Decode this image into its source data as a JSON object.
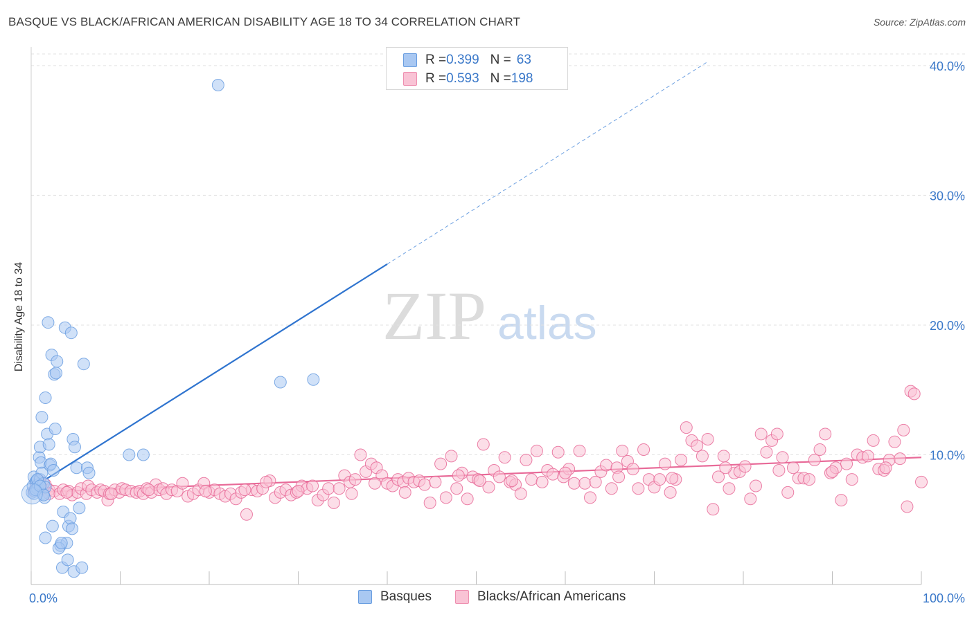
{
  "title": "BASQUE VS BLACK/AFRICAN AMERICAN DISABILITY AGE 18 TO 34 CORRELATION CHART",
  "source": "Source: ZipAtlas.com",
  "watermark": {
    "zip": "ZIP",
    "atlas": "atlas"
  },
  "legend_top": [
    {
      "r_label": "R = ",
      "r_value": "0.399",
      "n_label": "N = ",
      "n_value": "63",
      "color": "#a9c8f2",
      "border": "#6a9ee0"
    },
    {
      "r_label": "R = ",
      "r_value": "0.593",
      "n_label": "N = ",
      "n_value": "198",
      "color": "#f9c3d5",
      "border": "#ee8fb0"
    }
  ],
  "legend_bottom": [
    {
      "label": "Basques",
      "color": "#a9c8f2",
      "border": "#6a9ee0"
    },
    {
      "label": "Blacks/African Americans",
      "color": "#f9c3d5",
      "border": "#ee8fb0"
    }
  ],
  "chart_data": {
    "type": "scatter",
    "title": "BASQUE VS BLACK/AFRICAN AMERICAN DISABILITY AGE 18 TO 34 CORRELATION CHART",
    "xlabel": "",
    "ylabel": "Disability Age 18 to 34",
    "xlim": [
      0,
      100
    ],
    "ylim": [
      0,
      40
    ],
    "x_tick_labels": [
      "0.0%",
      "100.0%"
    ],
    "y_ticks": [
      10,
      20,
      30,
      40
    ],
    "y_tick_labels": [
      "10.0%",
      "20.0%",
      "30.0%",
      "40.0%"
    ],
    "grid": "horizontal dashed",
    "series": [
      {
        "name": "Basques",
        "color": "#6a9ee0",
        "fill": "#a9c8f2",
        "R": 0.399,
        "N": 63,
        "trend": {
          "x0": 0.0,
          "y0": 7.4,
          "x1": 40.0,
          "y1": 24.7,
          "dash_to_x": 76.0,
          "dash_to_y": 40.3
        },
        "points": [
          [
            0.1,
            7.1
          ],
          [
            0.2,
            7.6
          ],
          [
            0.3,
            8.3
          ],
          [
            0.4,
            7.2
          ],
          [
            0.5,
            7.9
          ],
          [
            0.6,
            8.0
          ],
          [
            0.7,
            7.4
          ],
          [
            0.8,
            7.7
          ],
          [
            0.9,
            9.8
          ],
          [
            1.0,
            8.1
          ],
          [
            1.1,
            9.4
          ],
          [
            1.2,
            8.6
          ],
          [
            1.3,
            7.0
          ],
          [
            1.4,
            7.8
          ],
          [
            1.5,
            6.7
          ],
          [
            1.6,
            7.5
          ],
          [
            1.0,
            10.6
          ],
          [
            1.2,
            12.9
          ],
          [
            1.6,
            14.4
          ],
          [
            1.8,
            11.6
          ],
          [
            1.9,
            20.2
          ],
          [
            2.0,
            10.8
          ],
          [
            2.1,
            9.2
          ],
          [
            2.2,
            9.3
          ],
          [
            2.3,
            17.7
          ],
          [
            2.5,
            8.8
          ],
          [
            2.6,
            16.2
          ],
          [
            2.8,
            16.3
          ],
          [
            2.7,
            12.0
          ],
          [
            2.9,
            17.2
          ],
          [
            3.3,
            3.0
          ],
          [
            3.5,
            1.3
          ],
          [
            3.6,
            5.6
          ],
          [
            3.8,
            19.8
          ],
          [
            4.0,
            3.2
          ],
          [
            4.1,
            1.9
          ],
          [
            4.2,
            4.5
          ],
          [
            4.4,
            5.1
          ],
          [
            4.5,
            19.4
          ],
          [
            4.6,
            4.3
          ],
          [
            4.7,
            11.2
          ],
          [
            4.8,
            1.0
          ],
          [
            4.9,
            10.6
          ],
          [
            5.1,
            9.0
          ],
          [
            5.4,
            5.9
          ],
          [
            5.7,
            1.3
          ],
          [
            5.9,
            17.0
          ],
          [
            6.3,
            9.0
          ],
          [
            6.5,
            8.6
          ],
          [
            1.6,
            3.6
          ],
          [
            2.4,
            4.5
          ],
          [
            3.1,
            2.8
          ],
          [
            3.4,
            3.2
          ],
          [
            21.0,
            38.5
          ],
          [
            28.0,
            15.6
          ],
          [
            31.7,
            15.8
          ],
          [
            11.0,
            10.0
          ],
          [
            12.6,
            10.0
          ],
          [
            0.3,
            7.0
          ],
          [
            0.5,
            7.3
          ],
          [
            0.7,
            8.1
          ],
          [
            1.0,
            7.6
          ],
          [
            1.4,
            6.9
          ]
        ]
      },
      {
        "name": "Blacks/African Americans",
        "color": "#e86a98",
        "fill": "#f9c3d5",
        "R": 0.593,
        "N": 198,
        "trend": {
          "x0": 0.0,
          "y0": 7.1,
          "x1": 100.0,
          "y1": 9.8
        },
        "points": [
          [
            0.3,
            7.2
          ],
          [
            0.6,
            7.6
          ],
          [
            0.9,
            8.0
          ],
          [
            1.2,
            7.4
          ],
          [
            1.6,
            7.7
          ],
          [
            2.0,
            7.3
          ],
          [
            2.6,
            7.2
          ],
          [
            3.2,
            7.0
          ],
          [
            3.6,
            7.3
          ],
          [
            4.2,
            7.2
          ],
          [
            4.6,
            6.9
          ],
          [
            5.2,
            7.1
          ],
          [
            5.6,
            7.4
          ],
          [
            6.2,
            7.0
          ],
          [
            6.4,
            7.6
          ],
          [
            6.8,
            7.3
          ],
          [
            7.4,
            7.1
          ],
          [
            7.8,
            7.3
          ],
          [
            8.2,
            7.2
          ],
          [
            8.6,
            6.5
          ],
          [
            8.8,
            7.0
          ],
          [
            9.4,
            7.3
          ],
          [
            9.9,
            7.1
          ],
          [
            10.2,
            7.4
          ],
          [
            10.6,
            7.3
          ],
          [
            11.2,
            7.2
          ],
          [
            11.8,
            7.1
          ],
          [
            12.2,
            7.2
          ],
          [
            12.6,
            7.0
          ],
          [
            13.0,
            7.4
          ],
          [
            13.5,
            7.1
          ],
          [
            14.0,
            7.7
          ],
          [
            14.4,
            7.3
          ],
          [
            14.8,
            7.4
          ],
          [
            15.2,
            7.0
          ],
          [
            15.8,
            7.3
          ],
          [
            16.4,
            7.2
          ],
          [
            17.0,
            7.8
          ],
          [
            17.6,
            6.8
          ],
          [
            18.2,
            7.0
          ],
          [
            18.8,
            7.3
          ],
          [
            19.4,
            7.8
          ],
          [
            20.0,
            7.1
          ],
          [
            20.6,
            7.3
          ],
          [
            21.2,
            7.0
          ],
          [
            21.8,
            6.8
          ],
          [
            22.4,
            7.0
          ],
          [
            23.0,
            6.6
          ],
          [
            23.6,
            7.1
          ],
          [
            24.2,
            5.4
          ],
          [
            24.8,
            7.3
          ],
          [
            25.4,
            7.2
          ],
          [
            26.0,
            7.4
          ],
          [
            26.8,
            8.0
          ],
          [
            27.4,
            6.7
          ],
          [
            28.0,
            7.1
          ],
          [
            28.6,
            7.3
          ],
          [
            29.2,
            6.9
          ],
          [
            29.8,
            7.1
          ],
          [
            30.4,
            7.6
          ],
          [
            31.0,
            7.4
          ],
          [
            31.6,
            7.6
          ],
          [
            32.2,
            6.5
          ],
          [
            32.8,
            6.9
          ],
          [
            33.4,
            7.4
          ],
          [
            34.0,
            6.3
          ],
          [
            34.6,
            7.4
          ],
          [
            35.2,
            8.4
          ],
          [
            35.8,
            7.9
          ],
          [
            36.4,
            8.1
          ],
          [
            37.0,
            10.0
          ],
          [
            37.6,
            8.7
          ],
          [
            38.2,
            9.3
          ],
          [
            38.8,
            9.0
          ],
          [
            39.4,
            8.4
          ],
          [
            40.0,
            7.8
          ],
          [
            40.6,
            7.6
          ],
          [
            41.2,
            8.1
          ],
          [
            41.8,
            7.9
          ],
          [
            42.4,
            8.2
          ],
          [
            43.0,
            7.9
          ],
          [
            43.6,
            8.0
          ],
          [
            44.2,
            7.7
          ],
          [
            44.8,
            6.3
          ],
          [
            45.4,
            7.9
          ],
          [
            46.0,
            9.3
          ],
          [
            46.6,
            6.7
          ],
          [
            47.2,
            9.9
          ],
          [
            47.8,
            7.4
          ],
          [
            48.4,
            8.6
          ],
          [
            49.0,
            6.6
          ],
          [
            49.6,
            8.3
          ],
          [
            50.2,
            8.1
          ],
          [
            50.8,
            10.8
          ],
          [
            51.4,
            7.5
          ],
          [
            52.0,
            8.8
          ],
          [
            52.6,
            8.3
          ],
          [
            53.2,
            9.8
          ],
          [
            53.8,
            7.9
          ],
          [
            54.4,
            7.7
          ],
          [
            55.0,
            7.0
          ],
          [
            55.6,
            9.6
          ],
          [
            56.2,
            8.1
          ],
          [
            56.8,
            10.3
          ],
          [
            57.4,
            7.9
          ],
          [
            58.0,
            8.8
          ],
          [
            58.6,
            8.5
          ],
          [
            59.2,
            10.2
          ],
          [
            59.8,
            8.3
          ],
          [
            60.4,
            8.9
          ],
          [
            61.0,
            7.8
          ],
          [
            61.6,
            10.3
          ],
          [
            62.2,
            7.8
          ],
          [
            62.8,
            6.7
          ],
          [
            63.4,
            7.9
          ],
          [
            64.0,
            8.7
          ],
          [
            64.6,
            9.2
          ],
          [
            65.2,
            7.4
          ],
          [
            65.8,
            9.0
          ],
          [
            66.4,
            10.3
          ],
          [
            67.0,
            9.5
          ],
          [
            67.6,
            8.9
          ],
          [
            68.2,
            7.4
          ],
          [
            68.8,
            10.4
          ],
          [
            69.4,
            8.1
          ],
          [
            70.0,
            7.5
          ],
          [
            70.6,
            8.1
          ],
          [
            71.2,
            9.3
          ],
          [
            71.8,
            7.1
          ],
          [
            72.4,
            8.1
          ],
          [
            73.0,
            9.6
          ],
          [
            73.6,
            12.1
          ],
          [
            74.2,
            11.1
          ],
          [
            74.8,
            10.7
          ],
          [
            75.4,
            9.9
          ],
          [
            76.0,
            11.2
          ],
          [
            76.6,
            5.8
          ],
          [
            77.2,
            8.3
          ],
          [
            77.8,
            9.9
          ],
          [
            78.4,
            7.4
          ],
          [
            79.0,
            8.6
          ],
          [
            79.6,
            8.7
          ],
          [
            80.2,
            9.1
          ],
          [
            80.8,
            6.6
          ],
          [
            81.4,
            7.6
          ],
          [
            82.0,
            11.6
          ],
          [
            82.6,
            10.2
          ],
          [
            83.2,
            11.1
          ],
          [
            83.8,
            11.6
          ],
          [
            84.4,
            9.8
          ],
          [
            85.0,
            7.1
          ],
          [
            85.6,
            9.0
          ],
          [
            86.2,
            8.2
          ],
          [
            86.8,
            8.2
          ],
          [
            87.4,
            8.1
          ],
          [
            88.0,
            9.6
          ],
          [
            88.6,
            10.4
          ],
          [
            89.2,
            11.6
          ],
          [
            89.8,
            8.6
          ],
          [
            90.4,
            9.0
          ],
          [
            91.0,
            6.5
          ],
          [
            91.6,
            9.3
          ],
          [
            92.2,
            8.1
          ],
          [
            92.8,
            10.0
          ],
          [
            93.4,
            9.8
          ],
          [
            94.0,
            9.9
          ],
          [
            94.6,
            11.1
          ],
          [
            95.2,
            8.9
          ],
          [
            95.8,
            8.8
          ],
          [
            96.4,
            9.6
          ],
          [
            97.0,
            11.0
          ],
          [
            97.6,
            9.7
          ],
          [
            98.0,
            11.9
          ],
          [
            98.4,
            6.0
          ],
          [
            98.8,
            14.9
          ],
          [
            99.2,
            14.7
          ],
          [
            100.0,
            7.9
          ],
          [
            2.0,
            7.0
          ],
          [
            4.0,
            7.1
          ],
          [
            9.0,
            7.0
          ],
          [
            13.2,
            7.3
          ],
          [
            19.6,
            7.2
          ],
          [
            24.0,
            7.3
          ],
          [
            30.0,
            7.2
          ],
          [
            36.0,
            7.0
          ],
          [
            42.0,
            7.1
          ],
          [
            48.0,
            8.4
          ],
          [
            54.0,
            8.0
          ],
          [
            60.0,
            8.6
          ],
          [
            66.0,
            8.3
          ],
          [
            72.0,
            8.2
          ],
          [
            78.0,
            9.0
          ],
          [
            84.0,
            8.8
          ],
          [
            90.0,
            8.7
          ],
          [
            96.0,
            9.0
          ],
          [
            26.4,
            7.9
          ],
          [
            38.6,
            7.8
          ],
          [
            50.4,
            8.0
          ]
        ]
      }
    ]
  }
}
